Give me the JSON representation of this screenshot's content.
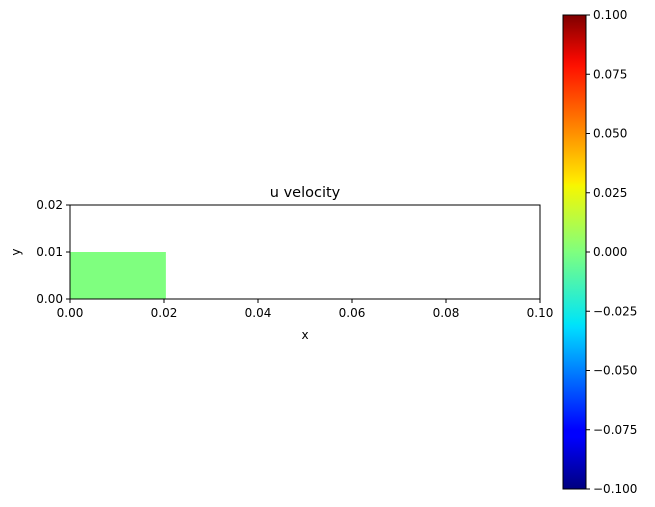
{
  "chart_data": {
    "type": "heatmap",
    "title": "u velocity",
    "xlabel": "x",
    "ylabel": "y",
    "xlim": [
      0.0,
      0.1
    ],
    "ylim": [
      0.0,
      0.02
    ],
    "x_ticks": [
      "0.00",
      "0.02",
      "0.04",
      "0.06",
      "0.08",
      "0.10"
    ],
    "y_ticks": [
      "0.00",
      "0.01",
      "0.02"
    ],
    "x_tick_values": [
      0.0,
      0.02,
      0.04,
      0.06,
      0.08,
      0.1
    ],
    "y_tick_values": [
      0.0,
      0.01,
      0.02
    ],
    "filled_region": {
      "x": [
        0.0,
        0.0204
      ],
      "y": [
        0.0,
        0.01
      ],
      "value": 0.0,
      "color": "#7fff7f"
    },
    "colorbar": {
      "colormap": "jet",
      "range": [
        -0.1,
        0.1
      ],
      "ticks": [
        "0.100",
        "0.075",
        "0.050",
        "0.025",
        "0.000",
        "−0.025",
        "−0.050",
        "−0.075",
        "−0.100"
      ],
      "tick_values": [
        0.1,
        0.075,
        0.05,
        0.025,
        0.0,
        -0.025,
        -0.05,
        -0.075,
        -0.1
      ]
    },
    "grid": false
  }
}
